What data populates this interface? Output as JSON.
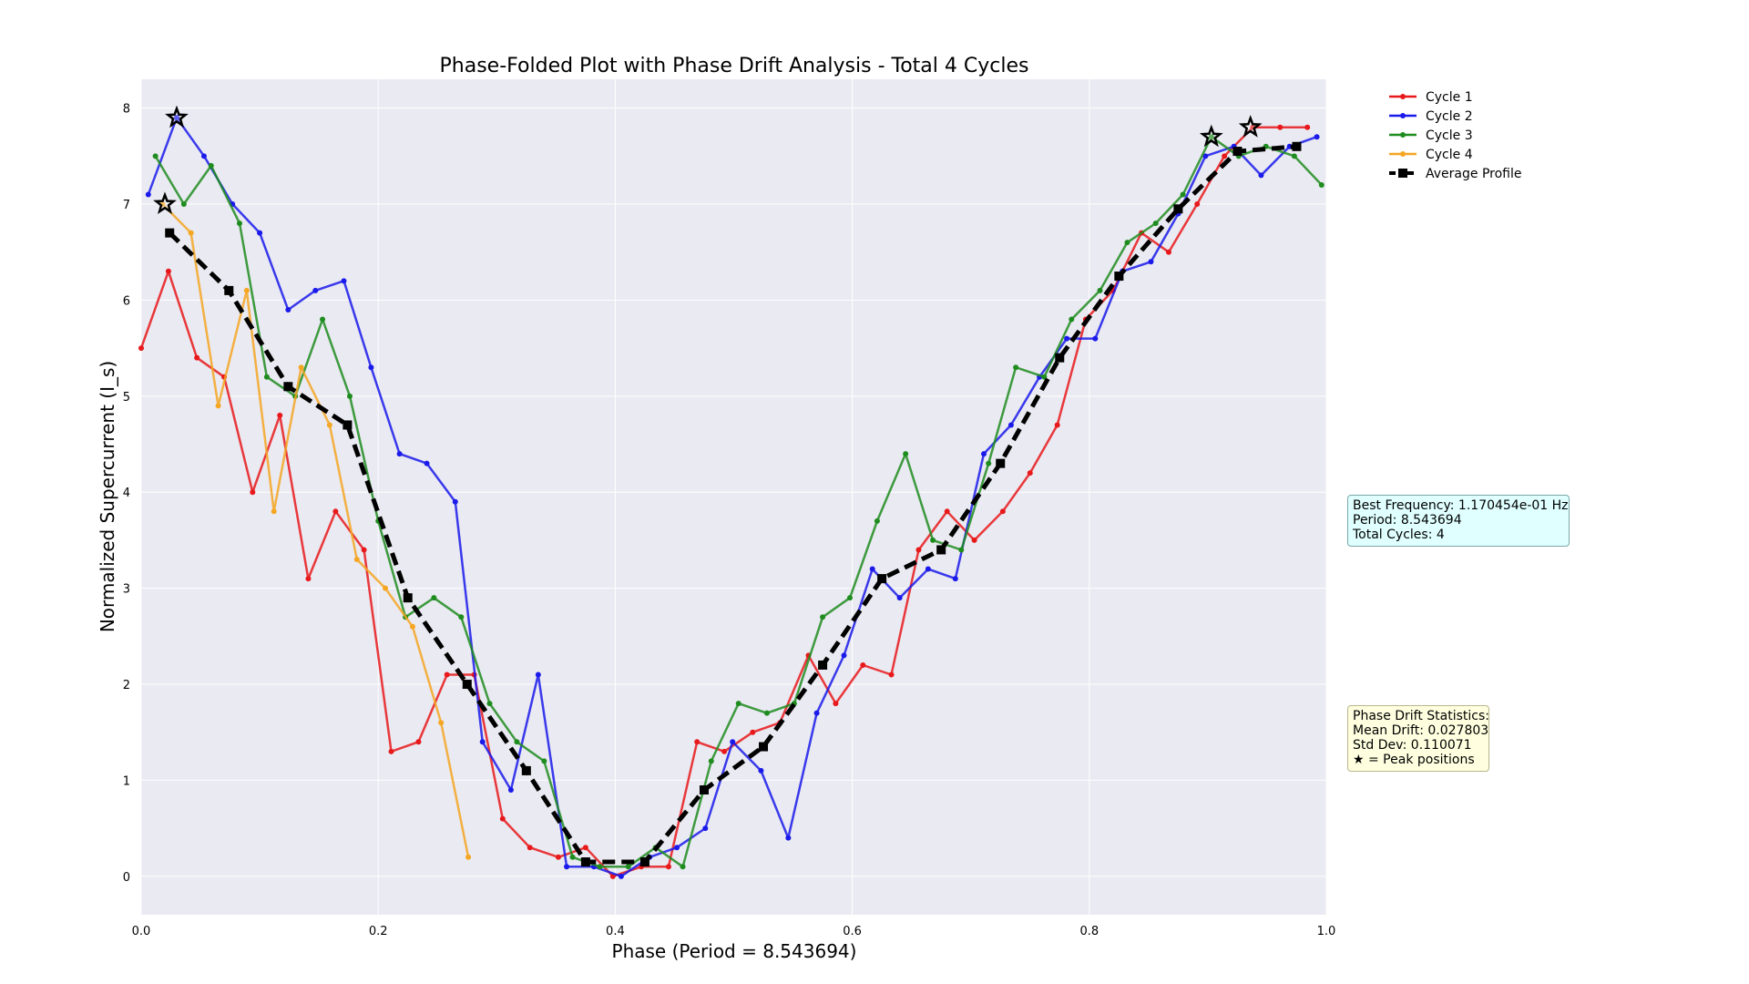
{
  "chart_data": {
    "type": "line",
    "title": "Phase-Folded Plot with Phase Drift Analysis - Total 4 Cycles",
    "xlabel": "Phase (Period = 8.543694)",
    "ylabel": "Normalized Supercurrent (I_s)",
    "xlim": [
      0.0,
      1.0
    ],
    "ylim": [
      -0.4,
      8.3
    ],
    "xticks": [
      "0.0",
      "0.2",
      "0.4",
      "0.6",
      "0.8",
      "1.0"
    ],
    "yticks": [
      "0",
      "1",
      "2",
      "3",
      "4",
      "5",
      "6",
      "7",
      "8"
    ],
    "grid": true,
    "legend_position": "outside-right-top",
    "series": [
      {
        "name": "Cycle 1",
        "color": "#e8191b",
        "x": [
          0.0,
          0.023,
          0.047,
          0.07,
          0.094,
          0.117,
          0.141,
          0.164,
          0.188,
          0.211,
          0.234,
          0.258,
          0.281,
          0.305,
          0.328,
          0.352,
          0.375,
          0.398,
          0.422,
          0.445,
          0.469,
          0.492,
          0.516,
          0.539,
          0.563,
          0.586,
          0.609,
          0.633,
          0.656,
          0.68,
          0.703,
          0.727,
          0.75,
          0.773,
          0.797,
          0.82,
          0.844,
          0.867,
          0.891,
          0.914,
          0.938,
          0.961,
          0.984
        ],
        "y": [
          5.5,
          6.3,
          5.4,
          5.2,
          4.0,
          4.8,
          3.1,
          3.8,
          3.4,
          1.3,
          1.4,
          2.1,
          2.1,
          0.6,
          0.3,
          0.2,
          0.3,
          0.0,
          0.1,
          0.1,
          1.4,
          1.3,
          1.5,
          1.6,
          2.3,
          1.8,
          2.2,
          2.1,
          3.4,
          3.8,
          3.5,
          3.8,
          4.2,
          4.7,
          5.8,
          6.1,
          6.7,
          6.5,
          7.0,
          7.5,
          7.8,
          7.8,
          7.8
        ]
      },
      {
        "name": "Cycle 2",
        "color": "#1a1aeb",
        "x": [
          0.006,
          0.03,
          0.053,
          0.077,
          0.1,
          0.124,
          0.147,
          0.171,
          0.194,
          0.218,
          0.241,
          0.265,
          0.288,
          0.312,
          0.335,
          0.359,
          0.382,
          0.405,
          0.429,
          0.452,
          0.476,
          0.499,
          0.523,
          0.546,
          0.57,
          0.593,
          0.617,
          0.64,
          0.664,
          0.687,
          0.711,
          0.734,
          0.758,
          0.781,
          0.805,
          0.828,
          0.852,
          0.875,
          0.898,
          0.922,
          0.945,
          0.969,
          0.992
        ],
        "y": [
          7.1,
          7.9,
          7.5,
          7.0,
          6.7,
          5.9,
          6.1,
          6.2,
          5.3,
          4.4,
          4.3,
          3.9,
          1.4,
          0.9,
          2.1,
          0.1,
          0.1,
          0.0,
          0.2,
          0.3,
          0.5,
          1.4,
          1.1,
          0.4,
          1.7,
          2.3,
          3.2,
          2.9,
          3.2,
          3.1,
          4.4,
          4.7,
          5.2,
          5.6,
          5.6,
          6.3,
          6.4,
          6.9,
          7.5,
          7.6,
          7.3,
          7.6,
          7.7
        ]
      },
      {
        "name": "Cycle 3",
        "color": "#1e8c1e",
        "x": [
          0.012,
          0.036,
          0.059,
          0.083,
          0.106,
          0.13,
          0.153,
          0.176,
          0.2,
          0.223,
          0.247,
          0.27,
          0.294,
          0.317,
          0.34,
          0.364,
          0.387,
          0.411,
          0.434,
          0.457,
          0.481,
          0.504,
          0.528,
          0.551,
          0.575,
          0.598,
          0.621,
          0.645,
          0.668,
          0.692,
          0.715,
          0.738,
          0.762,
          0.785,
          0.809,
          0.832,
          0.856,
          0.879,
          0.903,
          0.926,
          0.949,
          0.973,
          0.996
        ],
        "y": [
          7.5,
          7.0,
          7.4,
          6.8,
          5.2,
          5.0,
          5.8,
          5.0,
          3.7,
          2.7,
          2.9,
          2.7,
          1.8,
          1.4,
          1.2,
          0.2,
          0.1,
          0.1,
          0.3,
          0.1,
          1.2,
          1.8,
          1.7,
          1.8,
          2.7,
          2.9,
          3.7,
          4.4,
          3.5,
          3.4,
          4.3,
          5.3,
          5.2,
          5.8,
          6.1,
          6.6,
          6.8,
          7.1,
          7.7,
          7.5,
          7.6,
          7.5,
          7.2
        ]
      },
      {
        "name": "Cycle 4",
        "color": "#f5a623",
        "x": [
          0.018,
          0.042,
          0.065,
          0.089,
          0.112,
          0.135,
          0.159,
          0.182,
          0.206,
          0.229,
          0.253,
          0.276
        ],
        "y": [
          7.0,
          6.7,
          4.9,
          6.1,
          3.8,
          5.3,
          4.7,
          3.3,
          3.0,
          2.6,
          1.6,
          0.2
        ]
      },
      {
        "name": "Average Profile",
        "color": "#000000",
        "x": [
          0.024,
          0.074,
          0.124,
          0.174,
          0.225,
          0.275,
          0.325,
          0.375,
          0.425,
          0.475,
          0.525,
          0.575,
          0.625,
          0.675,
          0.725,
          0.775,
          0.825,
          0.875,
          0.925,
          0.975
        ],
        "y": [
          6.7,
          6.1,
          5.1,
          4.7,
          2.9,
          2.0,
          1.1,
          0.15,
          0.15,
          0.9,
          1.35,
          2.2,
          3.1,
          3.4,
          4.3,
          5.4,
          6.25,
          6.95,
          7.55,
          7.6
        ]
      }
    ],
    "peak_markers": [
      {
        "x": 0.03,
        "y": 7.9
      },
      {
        "x": 0.02,
        "y": 7.0
      },
      {
        "x": 0.903,
        "y": 7.7
      },
      {
        "x": 0.936,
        "y": 7.8
      }
    ]
  },
  "info": {
    "freq_lines": [
      "Best Frequency: 1.170454e-01 Hz",
      "Period: 8.543694",
      "Total Cycles: 4"
    ],
    "drift_lines": [
      "Phase Drift Statistics:",
      "Mean Drift: 0.027803",
      "Std Dev: 0.110071",
      "★ = Peak positions"
    ]
  }
}
